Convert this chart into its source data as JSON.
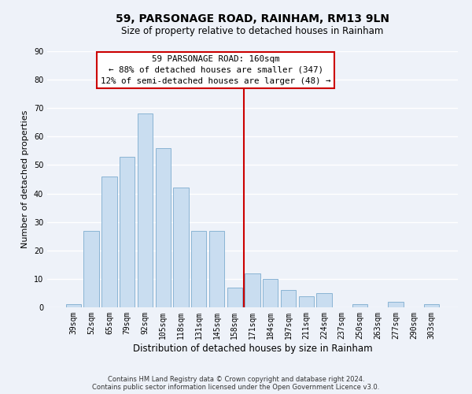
{
  "title": "59, PARSONAGE ROAD, RAINHAM, RM13 9LN",
  "subtitle": "Size of property relative to detached houses in Rainham",
  "xlabel": "Distribution of detached houses by size in Rainham",
  "ylabel": "Number of detached properties",
  "categories": [
    "39sqm",
    "52sqm",
    "65sqm",
    "79sqm",
    "92sqm",
    "105sqm",
    "118sqm",
    "131sqm",
    "145sqm",
    "158sqm",
    "171sqm",
    "184sqm",
    "197sqm",
    "211sqm",
    "224sqm",
    "237sqm",
    "250sqm",
    "263sqm",
    "277sqm",
    "290sqm",
    "303sqm"
  ],
  "values": [
    1,
    27,
    46,
    53,
    68,
    56,
    42,
    27,
    27,
    7,
    12,
    10,
    6,
    4,
    5,
    0,
    1,
    0,
    2,
    0,
    1
  ],
  "bar_color": "#c9ddf0",
  "bar_edge_color": "#8ab4d4",
  "vline_color": "#cc0000",
  "vline_pos": 9.5,
  "ylim": [
    0,
    90
  ],
  "yticks": [
    0,
    10,
    20,
    30,
    40,
    50,
    60,
    70,
    80,
    90
  ],
  "annotation_title": "59 PARSONAGE ROAD: 160sqm",
  "annotation_line1": "← 88% of detached houses are smaller (347)",
  "annotation_line2": "12% of semi-detached houses are larger (48) →",
  "annotation_box_color": "#ffffff",
  "annotation_box_edge": "#cc0000",
  "footer1": "Contains HM Land Registry data © Crown copyright and database right 2024.",
  "footer2": "Contains public sector information licensed under the Open Government Licence v3.0.",
  "background_color": "#eef2f9",
  "grid_color": "#ffffff",
  "title_fontsize": 10,
  "subtitle_fontsize": 8.5,
  "ylabel_fontsize": 8,
  "xlabel_fontsize": 8.5,
  "tick_fontsize": 7,
  "ann_fontsize": 7.8,
  "footer_fontsize": 6
}
